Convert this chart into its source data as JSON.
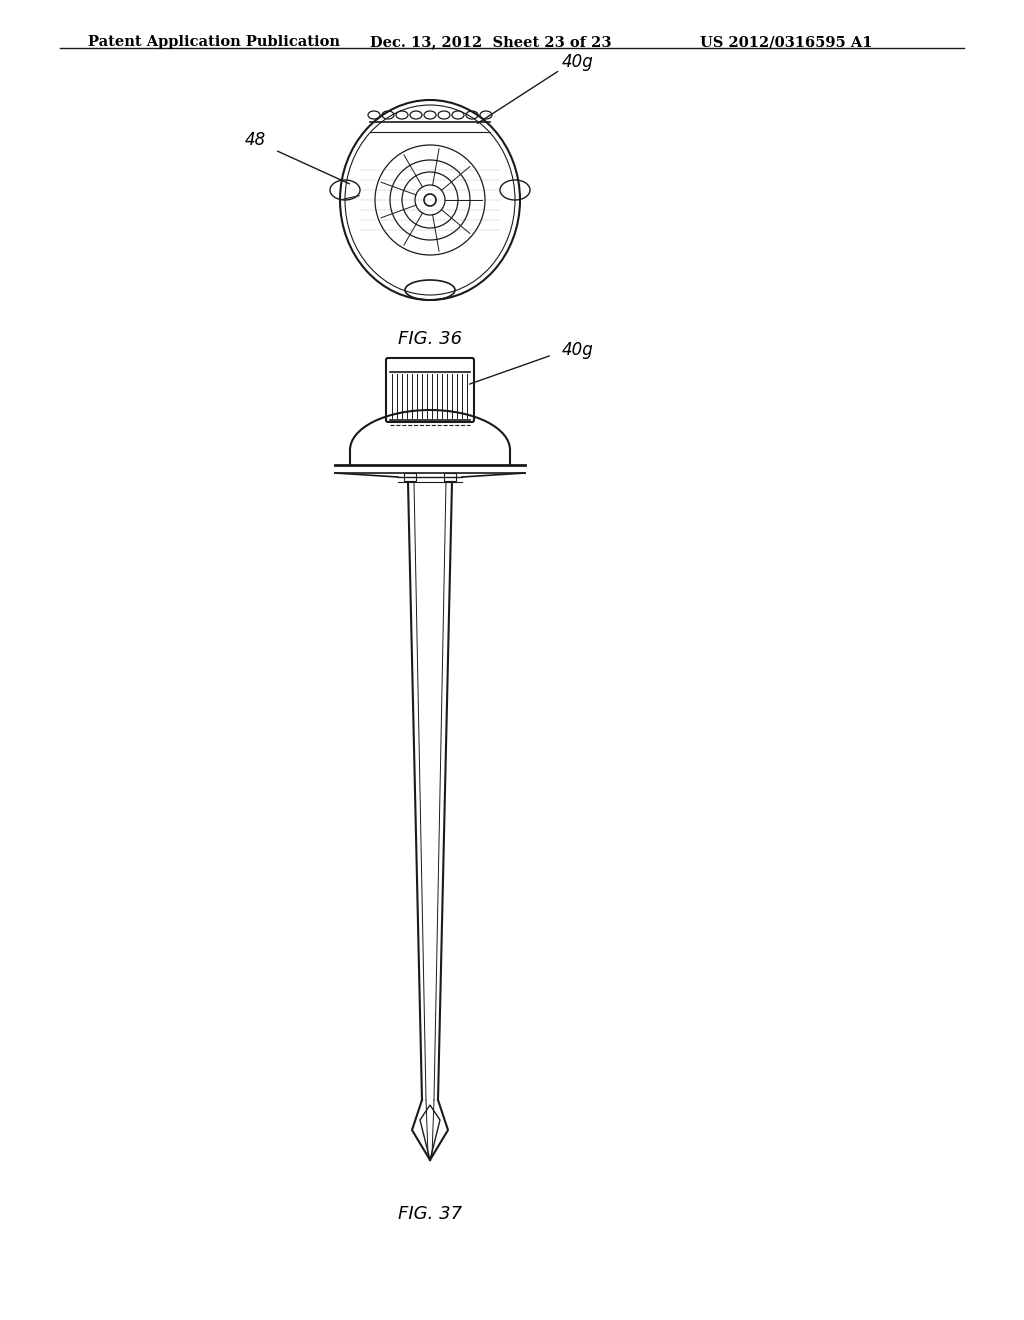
{
  "bg_color": "#ffffff",
  "header_left": "Patent Application Publication",
  "header_mid": "Dec. 13, 2012  Sheet 23 of 23",
  "header_right": "US 2012/0316595 A1",
  "fig36_label": "FIG. 36",
  "fig37_label": "FIG. 37",
  "label_48": "48",
  "label_40g_fig36": "40g",
  "label_40g_fig37": "40g",
  "line_color": "#1a1a1a",
  "text_color": "#000000",
  "header_fontsize": 10.5,
  "fig_label_fontsize": 13,
  "annotation_fontsize": 12
}
